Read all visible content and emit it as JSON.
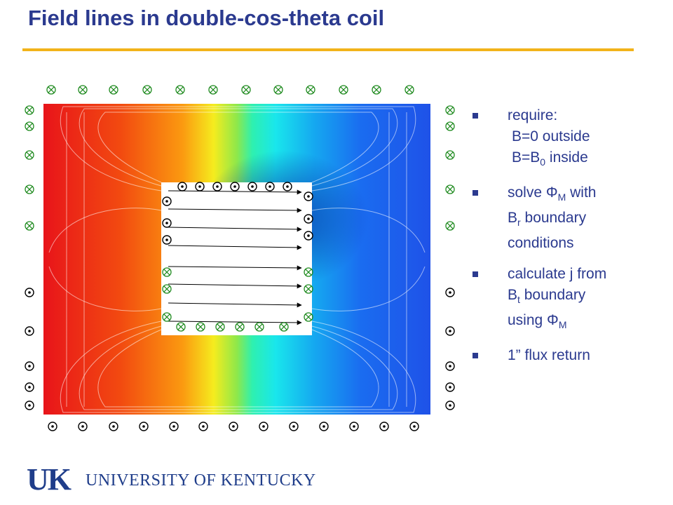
{
  "title": "Field lines in double-cos-theta coil",
  "colors": {
    "title": "#2b3a8f",
    "rule": "#f2b31a",
    "symbol": "#1e8a1e",
    "logo": "#1f3d8a"
  },
  "diagram": {
    "field_map": "color gradient red to blue with contour field lines",
    "symbols": {
      "into_page": "⊗",
      "out_of_page": "⊙"
    }
  },
  "bullets": [
    {
      "lines": [
        "require:",
        " B=0 outside",
        " B=B0 inside"
      ]
    },
    {
      "lines": [
        "solve ΦM with",
        "Br boundary",
        "conditions"
      ]
    },
    {
      "lines": [
        "calculate  j from",
        "Bt boundary",
        "using ΦM"
      ]
    },
    {
      "lines": [
        "1” flux return"
      ]
    }
  ],
  "bullet_text": {
    "b1_l1": "require:",
    "b1_l2": "B=0 outside",
    "b1_l3_pre": "B=B",
    "b1_l3_sub": "0",
    "b1_l3_post": " inside",
    "b2_l1_pre": "solve ",
    "b2_l1_phi": "Φ",
    "b2_l1_sub": "M",
    "b2_l1_post": " with",
    "b2_l2_pre": "B",
    "b2_l2_sub": "r",
    "b2_l2_post": " boundary",
    "b2_l3": "conditions",
    "b3_l1": "calculate  j from",
    "b3_l2_pre": "B",
    "b3_l2_sub": "t",
    "b3_l2_post": " boundary",
    "b3_l3_pre": "using ",
    "b3_l3_phi": "Φ",
    "b3_l3_sub": "M",
    "b4_l1": "1” flux return"
  },
  "logo": {
    "mark": "UK",
    "text": "UNIVERSITY OF KENTUCKY"
  }
}
